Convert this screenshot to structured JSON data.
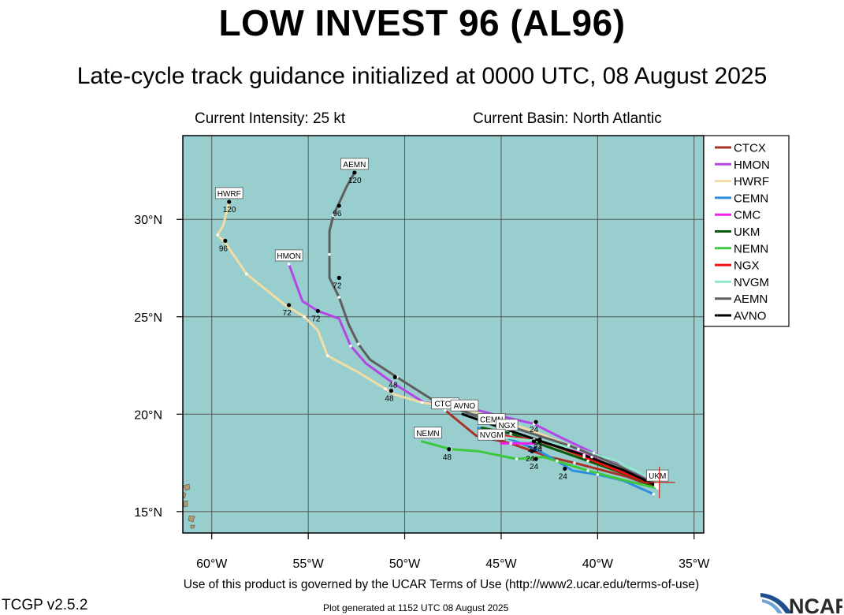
{
  "header": {
    "title": "LOW INVEST 96 (AL96)",
    "subtitle": "Late-cycle track guidance initialized at 0000 UTC, 08 August 2025",
    "intensity": "Current Intensity: 25 kt",
    "basin": "Current Basin: North Atlantic"
  },
  "footer": {
    "terms": "Use of this product is governed by the UCAR Terms of Use (http://www2.ucar.edu/terms-of-use)",
    "version": "TCGP v2.5.2",
    "generated": "Plot generated at 1152 UTC   08 August 2025",
    "logo_text": "NCAR"
  },
  "colors": {
    "ocean": "#98cece",
    "land": "#b09a6a",
    "grid": "#555555"
  },
  "chart_data": {
    "type": "line",
    "xlim": [
      -61.5,
      -34.5
    ],
    "ylim": [
      13.9,
      34.3
    ],
    "x_ticks": [
      -60,
      -55,
      -50,
      -45,
      -40,
      -35
    ],
    "x_tick_labels": [
      "60°W",
      "55°W",
      "50°W",
      "45°W",
      "40°W",
      "35°W"
    ],
    "y_ticks": [
      15,
      20,
      25,
      30
    ],
    "y_tick_labels": [
      "15°N",
      "20°N",
      "25°N",
      "30°N"
    ],
    "grid": true,
    "legend_position": "right",
    "current_position": [
      -36.8,
      16.5
    ],
    "series": [
      {
        "name": "CTCX",
        "color": "#a83228",
        "points": [
          [
            -36.9,
            16.2
          ],
          [
            -38.5,
            16.8
          ],
          [
            -41.2,
            17.5
          ],
          [
            -42.5,
            17.8
          ],
          [
            -44.5,
            18.5
          ],
          [
            -46.3,
            18.9
          ],
          [
            -47.9,
            20.2
          ]
        ],
        "label": "CTCX",
        "label_at": [
          -47.9,
          20.55
        ],
        "hours": []
      },
      {
        "name": "HMON",
        "color": "#b347e6",
        "points": [
          [
            -36.9,
            16.4
          ],
          [
            -38.6,
            17.4
          ],
          [
            -40.2,
            18.0
          ],
          [
            -42.1,
            18.9
          ],
          [
            -43.3,
            19.5
          ],
          [
            -45.0,
            19.9
          ],
          [
            -47.0,
            20.4
          ],
          [
            -49.0,
            20.6
          ],
          [
            -50.6,
            21.6
          ],
          [
            -52.0,
            22.6
          ],
          [
            -52.8,
            23.5
          ],
          [
            -53.4,
            24.9
          ],
          [
            -54.5,
            25.3
          ],
          [
            -55.3,
            25.8
          ],
          [
            -56.0,
            27.7
          ]
        ],
        "label": "HMON",
        "label_at": [
          -56.0,
          28.15
        ],
        "hours": [
          {
            "t": "24",
            "at": [
              -43.2,
              19.6
            ]
          },
          {
            "t": "72",
            "at": [
              -54.5,
              25.3
            ]
          }
        ]
      },
      {
        "name": "HWRF",
        "color": "#f2dca6",
        "points": [
          [
            -36.9,
            16.3
          ],
          [
            -39.0,
            17.2
          ],
          [
            -41.0,
            18.2
          ],
          [
            -43.0,
            19.0
          ],
          [
            -45.0,
            19.7
          ],
          [
            -47.0,
            20.3
          ],
          [
            -49.1,
            20.6
          ],
          [
            -50.5,
            21.0
          ],
          [
            -51.0,
            21.3
          ],
          [
            -52.5,
            22.2
          ],
          [
            -54.0,
            23.0
          ],
          [
            -54.5,
            24.3
          ],
          [
            -55.2,
            25.0
          ],
          [
            -56.2,
            25.6
          ],
          [
            -58.2,
            27.2
          ],
          [
            -59.3,
            28.8
          ],
          [
            -59.7,
            29.2
          ],
          [
            -59.4,
            29.7
          ],
          [
            -59.1,
            30.9
          ]
        ],
        "label": "HWRF",
        "label_at": [
          -59.1,
          31.35
        ],
        "hours": [
          {
            "t": "48",
            "at": [
              -50.7,
              21.2
            ]
          },
          {
            "t": "72",
            "at": [
              -56.0,
              25.6
            ]
          },
          {
            "t": "96",
            "at": [
              -59.3,
              28.9
            ]
          },
          {
            "t": "120",
            "at": [
              -59.1,
              30.9
            ]
          }
        ]
      },
      {
        "name": "CEMN",
        "color": "#2e8ee0",
        "points": [
          [
            -37.1,
            15.9
          ],
          [
            -38.7,
            16.6
          ],
          [
            -40.0,
            16.9
          ],
          [
            -41.3,
            17.1
          ],
          [
            -42.1,
            17.6
          ],
          [
            -43.2,
            18.2
          ],
          [
            -45.0,
            18.9
          ],
          [
            -46.2,
            19.3
          ]
        ],
        "label": "CEMN",
        "label_at": [
          -45.5,
          19.75
        ],
        "hours": [
          {
            "t": "24",
            "at": [
              -41.7,
              17.2
            ]
          }
        ]
      },
      {
        "name": "CMC",
        "color": "#f020f0",
        "points": [
          [
            -36.9,
            16.4
          ],
          [
            -38.4,
            16.9
          ],
          [
            -40.3,
            17.8
          ],
          [
            -42.5,
            18.5
          ],
          [
            -44.5,
            18.5
          ],
          [
            -45.0,
            18.5
          ]
        ],
        "label": "",
        "label_at": [
          -45.0,
          18.5
        ],
        "hours": [
          {
            "t": "24",
            "at": [
              -43.4,
              18.1
            ]
          }
        ]
      },
      {
        "name": "UKM",
        "color": "#0a5a0a",
        "points": [
          [
            -37.0,
            16.3
          ],
          [
            -38.5,
            16.9
          ],
          [
            -40.5,
            17.6
          ],
          [
            -42.8,
            18.4
          ],
          [
            -44.5,
            19.0
          ],
          [
            -46.0,
            19.3
          ]
        ],
        "label": "UKM",
        "label_at": [
          -36.9,
          16.85
        ],
        "hours": []
      },
      {
        "name": "NEMN",
        "color": "#3cc83c",
        "points": [
          [
            -36.9,
            16.2
          ],
          [
            -38.6,
            16.6
          ],
          [
            -40.5,
            17.1
          ],
          [
            -42.8,
            17.8
          ],
          [
            -44.2,
            17.7
          ],
          [
            -46.2,
            18.1
          ],
          [
            -47.6,
            18.2
          ],
          [
            -49.1,
            18.6
          ]
        ],
        "label": "NEMN",
        "label_at": [
          -48.8,
          19.05
        ],
        "hours": [
          {
            "t": "24",
            "at": [
              -43.2,
              17.7
            ]
          },
          {
            "t": "48",
            "at": [
              -47.7,
              18.2
            ]
          }
        ]
      },
      {
        "name": "NGX",
        "color": "#f01010",
        "points": [
          [
            -36.9,
            16.3
          ],
          [
            -38.7,
            17.0
          ],
          [
            -40.7,
            17.8
          ],
          [
            -42.0,
            18.3
          ],
          [
            -43.3,
            18.7
          ],
          [
            -44.4,
            18.8
          ],
          [
            -45.2,
            19.0
          ]
        ],
        "label": "NGX",
        "label_at": [
          -44.7,
          19.45
        ],
        "hours": [
          {
            "t": "24",
            "at": [
              -43.0,
              18.7
            ]
          }
        ]
      },
      {
        "name": "NVGM",
        "color": "#8ee8cc",
        "points": [
          [
            -36.9,
            16.5
          ],
          [
            -39.0,
            17.6
          ],
          [
            -41.0,
            18.2
          ],
          [
            -43.0,
            18.6
          ],
          [
            -44.8,
            18.8
          ],
          [
            -46.0,
            18.9
          ]
        ],
        "label": "NVGM",
        "label_at": [
          -45.5,
          18.95
        ],
        "hours": [
          {
            "t": "24",
            "at": [
              -43.3,
              18.6
            ]
          }
        ]
      },
      {
        "name": "AEMN",
        "color": "#5e5e5e",
        "points": [
          [
            -37.0,
            16.4
          ],
          [
            -39.0,
            17.4
          ],
          [
            -41.5,
            18.4
          ],
          [
            -44.0,
            19.2
          ],
          [
            -46.0,
            19.8
          ],
          [
            -48.5,
            20.7
          ],
          [
            -50.4,
            21.9
          ],
          [
            -51.8,
            22.8
          ],
          [
            -52.4,
            23.6
          ],
          [
            -52.9,
            24.6
          ],
          [
            -53.4,
            26.0
          ],
          [
            -53.9,
            27.0
          ],
          [
            -53.9,
            28.2
          ],
          [
            -53.9,
            29.4
          ],
          [
            -53.7,
            30.2
          ],
          [
            -53.0,
            31.7
          ],
          [
            -52.6,
            32.4
          ]
        ],
        "label": "AEMN",
        "label_at": [
          -52.6,
          32.85
        ],
        "hours": [
          {
            "t": "48",
            "at": [
              -50.5,
              21.9
            ]
          },
          {
            "t": "72",
            "at": [
              -53.4,
              27.0
            ]
          },
          {
            "t": "96",
            "at": [
              -53.4,
              30.7
            ]
          },
          {
            "t": "120",
            "at": [
              -52.6,
              32.4
            ]
          }
        ]
      },
      {
        "name": "AVNO",
        "color": "#000000",
        "points": [
          [
            -36.9,
            16.3
          ],
          [
            -38.6,
            17.1
          ],
          [
            -40.7,
            17.9
          ],
          [
            -42.9,
            18.6
          ],
          [
            -45.0,
            19.3
          ],
          [
            -47.0,
            20.0
          ]
        ],
        "label": "AVNO",
        "label_at": [
          -46.9,
          20.45
        ],
        "hours": [
          {
            "t": "24",
            "at": [
              -43.0,
              18.6
            ]
          }
        ]
      }
    ]
  }
}
